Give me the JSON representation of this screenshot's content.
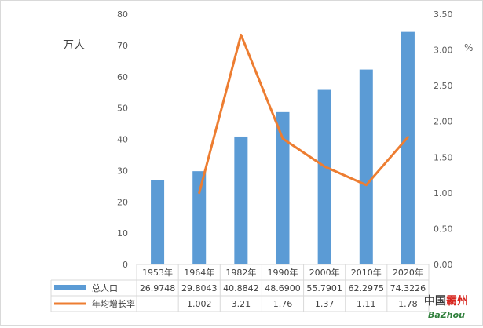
{
  "chart_data": {
    "type": "bar+line",
    "categories": [
      "1953年",
      "1964年",
      "1982年",
      "1990年",
      "2000年",
      "2010年",
      "2020年"
    ],
    "series": [
      {
        "name": "总人口",
        "type": "bar",
        "axis": "left",
        "color": "#5b9bd5",
        "values": [
          26.9748,
          29.8043,
          40.8842,
          48.69,
          55.7901,
          62.2975,
          74.3226
        ],
        "table_values": [
          "26.9748",
          "29.8043",
          "40.8842",
          "48.6900",
          "55.7901",
          "62.2975",
          "74.3226"
        ]
      },
      {
        "name": "年均增长率",
        "type": "line",
        "axis": "right",
        "color": "#ed7d31",
        "values": [
          null,
          1.002,
          3.21,
          1.76,
          1.37,
          1.11,
          1.78
        ],
        "table_values": [
          "",
          "1.002",
          "3.21",
          "1.76",
          "1.37",
          "1.11",
          "1.78"
        ]
      }
    ],
    "y_left": {
      "label": "万人",
      "min": 0,
      "max": 80,
      "ticks": [
        "0",
        "10",
        "20",
        "30",
        "40",
        "50",
        "60",
        "70",
        "80"
      ]
    },
    "y_right": {
      "label": "%",
      "min": 0,
      "max": 3.5,
      "ticks": [
        "0.00",
        "0.50",
        "1.00",
        "1.50",
        "2.00",
        "2.50",
        "3.00",
        "3.50"
      ]
    },
    "data_table": true,
    "grid": false
  },
  "watermark": {
    "line1_a": "中国",
    "line1_b": "霸州",
    "line2": "BaZhou",
    "color_a": "#333333",
    "color_b": "#d7261f",
    "color_c": "#2f7f3b"
  }
}
